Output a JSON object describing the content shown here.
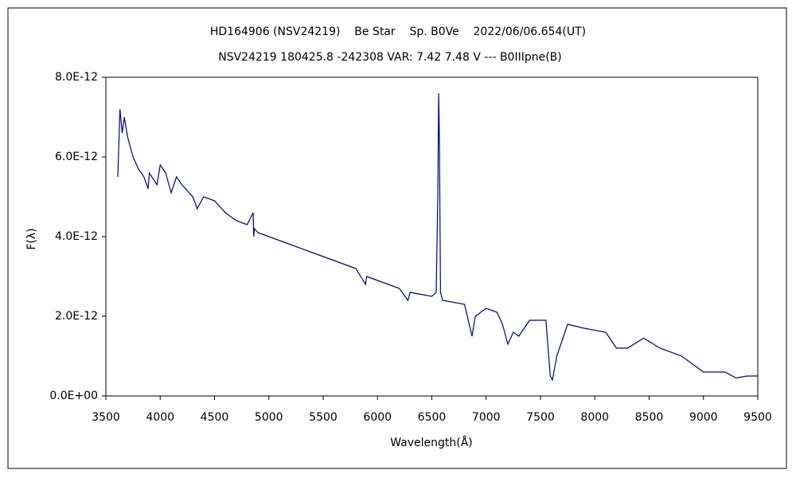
{
  "chart_data": {
    "type": "line",
    "title": "HD164906 (NSV24219)    Be Star    Sp. B0Ve    2022/06/06.654(UT)",
    "subtitle": "NSV24219 180425.8 -242308 VAR: 7.42 7.48 V --- B0IIIpne(B)",
    "x_label": "Wavelength(Å)",
    "y_label": "F(λ)",
    "color": "#000080",
    "x": [
      3610,
      3630,
      3650,
      3670,
      3700,
      3750,
      3800,
      3850,
      3889,
      3900,
      3970,
      4000,
      4050,
      4101,
      4150,
      4200,
      4300,
      4340,
      4400,
      4500,
      4600,
      4700,
      4800,
      4855,
      4861,
      4866,
      4900,
      5000,
      5200,
      5400,
      5600,
      5800,
      5890,
      5900,
      6000,
      6200,
      6280,
      6300,
      6500,
      6540,
      6555,
      6563,
      6570,
      6580,
      6600,
      6800,
      6870,
      6900,
      7000,
      7100,
      7150,
      7200,
      7250,
      7300,
      7400,
      7550,
      7590,
      7610,
      7650,
      7700,
      7750,
      7900,
      8100,
      8200,
      8300,
      8450,
      8600,
      8800,
      9000,
      9200,
      9300,
      9400,
      9500
    ],
    "values": [
      5.5e-12,
      7.2e-12,
      6.6e-12,
      7e-12,
      6.5e-12,
      6e-12,
      5.7e-12,
      5.5e-12,
      5.2e-12,
      5.6e-12,
      5.3e-12,
      5.8e-12,
      5.6e-12,
      5.1e-12,
      5.5e-12,
      5.3e-12,
      5e-12,
      4.7e-12,
      5e-12,
      4.9e-12,
      4.6e-12,
      4.4e-12,
      4.3e-12,
      4.6e-12,
      4e-12,
      4.2e-12,
      4.1e-12,
      4e-12,
      3.8e-12,
      3.6e-12,
      3.4e-12,
      3.2e-12,
      2.8e-12,
      3e-12,
      2.9e-12,
      2.7e-12,
      2.4e-12,
      2.6e-12,
      2.5e-12,
      2.6e-12,
      5e-12,
      7.6e-12,
      6.3e-12,
      2.6e-12,
      2.4e-12,
      2.3e-12,
      1.5e-12,
      2e-12,
      2.2e-12,
      2.1e-12,
      1.8e-12,
      1.3e-12,
      1.6e-12,
      1.5e-12,
      1.9e-12,
      1.9e-12,
      5e-13,
      4e-13,
      1e-12,
      1.4e-12,
      1.8e-12,
      1.7e-12,
      1.6e-12,
      1.2e-12,
      1.2e-12,
      1.45e-12,
      1.2e-12,
      1e-12,
      6e-13,
      6e-13,
      4.5e-13,
      5e-13,
      5e-13
    ],
    "xlim": [
      3500,
      9500
    ],
    "xticks": [
      3500,
      4000,
      4500,
      5000,
      5500,
      6000,
      6500,
      7000,
      7500,
      8000,
      8500,
      9000,
      9500
    ],
    "ylim": [
      0,
      8e-12
    ],
    "yticks": [
      {
        "value": 0,
        "label": "0.0E+00"
      },
      {
        "value": 2e-12,
        "label": "2.0E-12"
      },
      {
        "value": 4e-12,
        "label": "4.0E-12"
      },
      {
        "value": 6e-12,
        "label": "6.0E-12"
      },
      {
        "value": 8e-12,
        "label": "8.0E-12"
      }
    ],
    "grid": false
  }
}
